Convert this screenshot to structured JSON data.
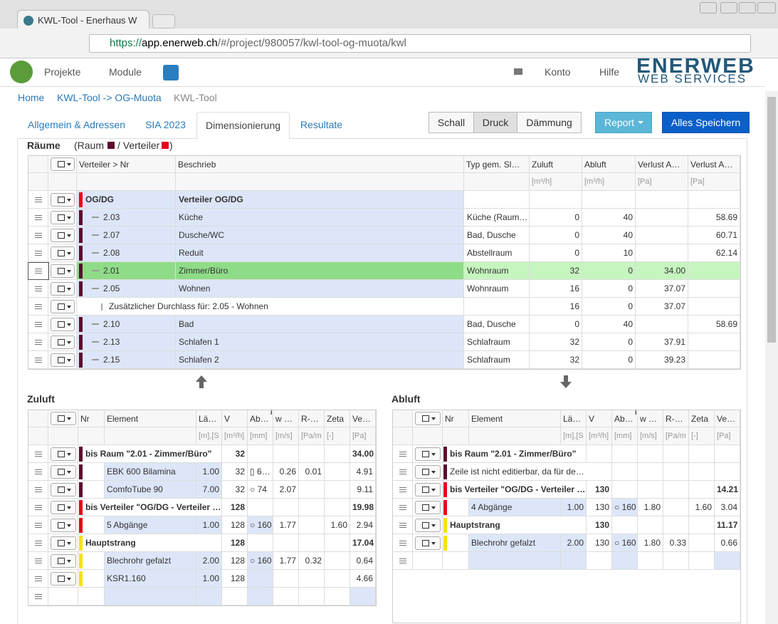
{
  "browser": {
    "tab_title": "KWL-Tool - Enerhaus W",
    "url_scheme": "https://",
    "url_host": "app.enerweb.ch",
    "url_path": "/#/project/980057/kwl-tool-og-muota/kwl"
  },
  "nav": {
    "items": [
      "Projekte",
      "Module",
      "Konto",
      "Hilfe"
    ],
    "logo_top": "ENERWEB",
    "logo_bottom": "WEB SERVICES"
  },
  "breadcrumb": [
    "Home",
    "KWL-Tool -> OG-Muota",
    "KWL-Tool"
  ],
  "tabs": {
    "items": [
      "Allgemein & Adressen",
      "SIA 2023",
      "Dimensionierung",
      "Resultate"
    ],
    "active": 2
  },
  "buttons": {
    "toggle": [
      "Schall",
      "Druck",
      "Dämmung"
    ],
    "active_toggle": 1,
    "report": "Report",
    "save": "Alles Speichern"
  },
  "rooms": {
    "title": "Räume",
    "legend": [
      "(Raum",
      "/ Verteiler",
      ")"
    ],
    "legend_colors": [
      "#5c0a2e",
      "#e8001c"
    ],
    "headers": [
      "Verteiler > Nr",
      "Beschrieb",
      "Typ gem. Sl…",
      "Zuluft",
      "Abluft",
      "Verlust A…",
      "Verlust A…"
    ],
    "units": [
      null,
      null,
      null,
      "[m³/h]",
      "[m³/h]",
      "[Pa]",
      "[Pa]"
    ],
    "rows": [
      {
        "style": "group",
        "marker": "#e8001c",
        "cells": [
          "OG/DG",
          "Verteiler OG/DG",
          null,
          null,
          null,
          null,
          null
        ]
      },
      {
        "style": "room",
        "marker": "#5c0a2e",
        "cells": [
          "2.03",
          "Küche",
          "Küche (Raum…",
          "0",
          "40",
          null,
          "58.69"
        ]
      },
      {
        "style": "room",
        "marker": "#5c0a2e",
        "cells": [
          "2.07",
          "Dusche/WC",
          "Bad, Dusche",
          "0",
          "40",
          null,
          "60.71"
        ]
      },
      {
        "style": "room",
        "marker": "#5c0a2e",
        "cells": [
          "2.08",
          "Reduit",
          "Abstellraum",
          "0",
          "10",
          null,
          "62.14"
        ]
      },
      {
        "style": "selected",
        "marker": "#5c0a2e",
        "cells": [
          "2.01",
          "Zimmer/Büro",
          "Wohnraum",
          "32",
          "0",
          "34.00",
          null
        ]
      },
      {
        "style": "room",
        "marker": "#5c0a2e",
        "cells": [
          "2.05",
          "Wohnen",
          "Wohnraum",
          "16",
          "0",
          "37.07",
          null
        ]
      },
      {
        "style": "extra",
        "marker": null,
        "cells": [
          "Zusätzlicher Durchlass für: 2.05 - Wohnen",
          null,
          null,
          "16",
          "0",
          "37.07",
          null
        ]
      },
      {
        "style": "room",
        "marker": "#5c0a2e",
        "cells": [
          "2.10",
          "Bad",
          "Bad, Dusche",
          "0",
          "40",
          null,
          "58.69"
        ]
      },
      {
        "style": "room",
        "marker": "#5c0a2e",
        "cells": [
          "2.13",
          "Schlafen 1",
          "Schlafraum",
          "32",
          "0",
          "37.91",
          null
        ]
      },
      {
        "style": "room",
        "marker": "#5c0a2e",
        "cells": [
          "2.15",
          "Schlafen 2",
          "Schlafraum",
          "32",
          "0",
          "39.23",
          null
        ]
      }
    ]
  },
  "zuluft": {
    "title": "Zuluft",
    "headers": [
      "Nr",
      "Element",
      "Lä…",
      "V",
      "Ab…",
      "w …",
      "R-…",
      "Zeta",
      "Ve…"
    ],
    "info_mark": "i",
    "units": [
      null,
      null,
      "[m],[S",
      "[m³/h]",
      "[mm]",
      "[m/s]",
      "[Pa/m",
      "[-]",
      "[Pa]"
    ],
    "rows": [
      {
        "style": "group",
        "marker": "#5c0a2e",
        "cells": [
          "bis Raum \"2.01 - Zimmer/Büro\"",
          null,
          "32",
          null,
          null,
          null,
          null,
          "34.00"
        ]
      },
      {
        "style": "normal",
        "marker": "#5c0a2e",
        "cells": [
          "EBK 600 Bilamina",
          "1.00",
          "32",
          "▯ 6…",
          "0.26",
          "0.01",
          null,
          "4.91"
        ]
      },
      {
        "style": "normal",
        "marker": "#5c0a2e",
        "cells": [
          "ComfoTube 90",
          "7.00",
          "32",
          "○ 74",
          "2.07",
          null,
          null,
          "9.11"
        ]
      },
      {
        "style": "group",
        "marker": "#e8001c",
        "cells": [
          "bis Verteiler \"OG/DG - Verteiler …",
          null,
          "128",
          null,
          null,
          null,
          null,
          "19.98"
        ]
      },
      {
        "style": "normal",
        "marker": "#e8001c",
        "cells": [
          "5 Abgänge",
          "1.00",
          "128",
          "○ 160",
          "1.77",
          null,
          "1.60",
          "2.94"
        ]
      },
      {
        "style": "group",
        "marker": "#f5e400",
        "cells": [
          "Hauptstrang",
          null,
          "128",
          null,
          null,
          null,
          null,
          "17.04"
        ]
      },
      {
        "style": "normal",
        "marker": "#f5e400",
        "cells": [
          "Blechrohr gefalzt",
          "2.00",
          "128",
          "○ 160",
          "1.77",
          "0.32",
          null,
          "0.64"
        ]
      },
      {
        "style": "normal",
        "marker": "#f5e400",
        "cells": [
          "KSR1.160",
          "1.00",
          "128",
          null,
          null,
          null,
          null,
          "4.66"
        ]
      },
      {
        "style": "empty",
        "marker": null,
        "cells": [
          null,
          null,
          null,
          null,
          null,
          null,
          null,
          null
        ]
      }
    ]
  },
  "abluft": {
    "title": "Abluft",
    "headers": [
      "Nr",
      "Element",
      "Lä…",
      "V",
      "Ab…",
      "w …",
      "R-…",
      "Zeta",
      "Ve…"
    ],
    "info_mark": "i",
    "units": [
      null,
      null,
      "[m],[S",
      "[m³/h]",
      "[mm]",
      "[m/s]",
      "[Pa/m",
      "[-]",
      "[Pa]"
    ],
    "rows": [
      {
        "style": "group",
        "marker": "#5c0a2e",
        "cells": [
          "bis Raum \"2.01 - Zimmer/Büro\"",
          null,
          null,
          null,
          null,
          null,
          null,
          null
        ]
      },
      {
        "style": "note",
        "marker": "#5c0a2e",
        "cells": [
          "Zeile ist nicht editierbar, da für de…",
          null,
          null,
          null,
          null,
          null,
          null,
          null
        ]
      },
      {
        "style": "group",
        "marker": "#e8001c",
        "cells": [
          "bis Verteiler \"OG/DG - Verteiler …",
          null,
          "130",
          null,
          null,
          null,
          null,
          "14.21"
        ]
      },
      {
        "style": "normal",
        "marker": "#e8001c",
        "cells": [
          "4 Abgänge",
          "1.00",
          "130",
          "○ 160",
          "1.80",
          null,
          "1.60",
          "3.04"
        ]
      },
      {
        "style": "group",
        "marker": "#f5e400",
        "cells": [
          "Hauptstrang",
          null,
          "130",
          null,
          null,
          null,
          null,
          "11.17"
        ]
      },
      {
        "style": "normal",
        "marker": "#f5e400",
        "cells": [
          "Blechrohr gefalzt",
          "2.00",
          "130",
          "○ 160",
          "1.80",
          "0.33",
          null,
          "0.66"
        ]
      },
      {
        "style": "empty",
        "marker": null,
        "cells": [
          null,
          null,
          null,
          null,
          null,
          null,
          null,
          null
        ]
      }
    ]
  }
}
